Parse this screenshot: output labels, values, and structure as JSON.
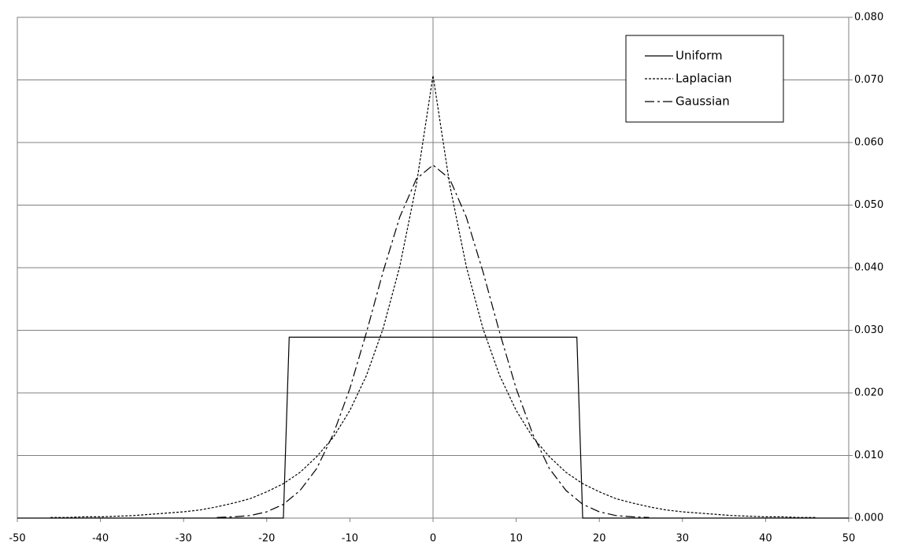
{
  "chart_data": {
    "type": "line",
    "xlim": [
      -50,
      50
    ],
    "xticks": [
      -50,
      -40,
      -30,
      -20,
      -10,
      0,
      10,
      20,
      30,
      40,
      50
    ],
    "ylim": [
      0,
      0.08
    ],
    "yticks": [
      {
        "value": 0,
        "label": "0.000"
      },
      {
        "value": 0.01,
        "label": "0.010"
      },
      {
        "value": 0.02,
        "label": "0.020"
      },
      {
        "value": 0.03,
        "label": "0.030"
      },
      {
        "value": 0.04,
        "label": "0.040"
      },
      {
        "value": 0.05,
        "label": "0.050"
      },
      {
        "value": 0.06,
        "label": "0.060"
      },
      {
        "value": 0.07,
        "label": "0.070"
      },
      {
        "value": 0.08,
        "label": "0.080"
      }
    ],
    "y_axis_side": "right",
    "grid": true,
    "legend": "upper right",
    "series": [
      {
        "name": "Uniform",
        "color": "#000000",
        "style": "solid",
        "x": [
          -50,
          -18,
          -17.3,
          17.3,
          18,
          50
        ],
        "values": [
          0,
          0,
          0.0289,
          0.0289,
          0,
          0
        ]
      },
      {
        "name": "Laplacian",
        "color": "#000000",
        "style": "dotted",
        "x": [
          -46,
          -44,
          -42,
          -40,
          -38,
          -36,
          -34,
          -32,
          -30,
          -28,
          -26,
          -24,
          -22,
          -20,
          -18,
          -16,
          -14,
          -12,
          -10,
          -8,
          -6,
          -4,
          -2,
          0,
          2,
          4,
          6,
          8,
          10,
          12,
          14,
          16,
          18,
          20,
          22,
          24,
          26,
          28,
          30,
          32,
          34,
          36,
          38,
          40,
          42,
          44,
          46
        ],
        "values": [
          0.0001,
          0.0001,
          0.0002,
          0.0002,
          0.0003,
          0.0004,
          0.0006,
          0.0008,
          0.001,
          0.0013,
          0.0018,
          0.0024,
          0.0031,
          0.0042,
          0.0055,
          0.0073,
          0.0098,
          0.0129,
          0.0172,
          0.0228,
          0.0303,
          0.0402,
          0.0533,
          0.0707,
          0.0533,
          0.0402,
          0.0303,
          0.0228,
          0.0172,
          0.0129,
          0.0098,
          0.0073,
          0.0055,
          0.0042,
          0.0031,
          0.0024,
          0.0018,
          0.0013,
          0.001,
          0.0008,
          0.0006,
          0.0004,
          0.0003,
          0.0002,
          0.0002,
          0.0001,
          0.0001
        ]
      },
      {
        "name": "Gaussian",
        "color": "#000000",
        "style": "dashdot",
        "x": [
          -26,
          -24,
          -22,
          -20,
          -18,
          -16,
          -14,
          -12,
          -10,
          -8,
          -6,
          -4,
          -2,
          0,
          2,
          4,
          6,
          8,
          10,
          12,
          14,
          16,
          18,
          20,
          22,
          24,
          26
        ],
        "values": [
          0.0001,
          0.0002,
          0.0004,
          0.001,
          0.0022,
          0.0044,
          0.0079,
          0.0134,
          0.0207,
          0.0297,
          0.0394,
          0.0481,
          0.0542,
          0.0564,
          0.0542,
          0.0481,
          0.0394,
          0.0297,
          0.0207,
          0.0134,
          0.0079,
          0.0044,
          0.0022,
          0.001,
          0.0004,
          0.0002,
          0.0001
        ]
      }
    ]
  }
}
